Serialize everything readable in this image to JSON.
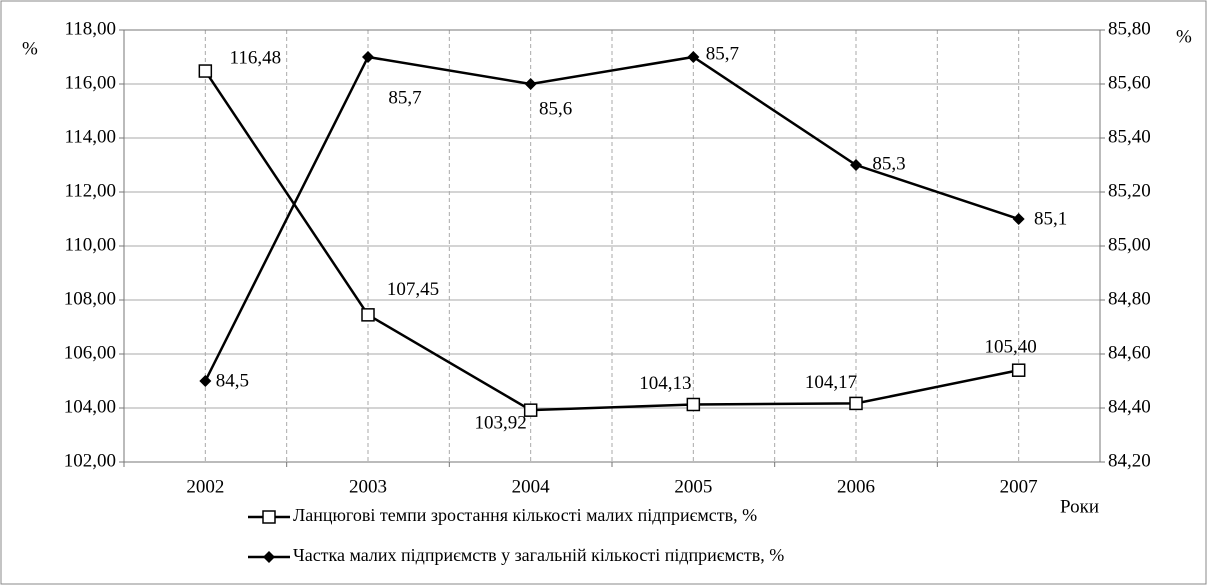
{
  "chart_data": {
    "type": "line",
    "categories": [
      "2002",
      "2003",
      "2004",
      "2005",
      "2006",
      "2007"
    ],
    "x_label": "Роки",
    "y_label": "%",
    "y2_label": "%",
    "series": [
      {
        "name": "Ланцюгові темпи зростання кількості малих підприємств, %",
        "color": "#000000",
        "marker": "square",
        "values": [
          116.48,
          107.45,
          103.92,
          104.13,
          104.17,
          105.4
        ],
        "value_labels": [
          "116,48",
          "107,45",
          "103,92",
          "104,13",
          "104,17",
          "105,40"
        ]
      },
      {
        "name": "Частка малих підприємств у загальній кількості підприємств, %",
        "color": "#000000",
        "marker": "diamond",
        "axis": "y2",
        "values": [
          84.5,
          85.7,
          85.6,
          85.7,
          85.3,
          85.1
        ],
        "value_labels": [
          "84,5",
          "85,7",
          "85,6",
          "85,7",
          "85,3",
          "85,1"
        ]
      }
    ],
    "ylim": [
      102,
      118
    ],
    "yticks": [
      {
        "value": 102,
        "label": "102,00"
      },
      {
        "value": 104,
        "label": "104,00"
      },
      {
        "value": 106,
        "label": "106,00"
      },
      {
        "value": 108,
        "label": "108,00"
      },
      {
        "value": 110,
        "label": "110,00"
      },
      {
        "value": 112,
        "label": "112,00"
      },
      {
        "value": 114,
        "label": "114,00"
      },
      {
        "value": 116,
        "label": "116,00"
      },
      {
        "value": 118,
        "label": "118,00"
      }
    ],
    "y2lim": [
      84.2,
      85.8
    ],
    "y2ticks": [
      {
        "value": 84.2,
        "label": "84,20"
      },
      {
        "value": 84.4,
        "label": "84,40"
      },
      {
        "value": 84.6,
        "label": "84,60"
      },
      {
        "value": 84.8,
        "label": "84,80"
      },
      {
        "value": 85.0,
        "label": "85,00"
      },
      {
        "value": 85.2,
        "label": "85,20"
      },
      {
        "value": 85.4,
        "label": "85,40"
      },
      {
        "value": 85.6,
        "label": "85,60"
      },
      {
        "value": 85.8,
        "label": "85,80"
      }
    ],
    "grid": true,
    "legend": "bottom"
  }
}
